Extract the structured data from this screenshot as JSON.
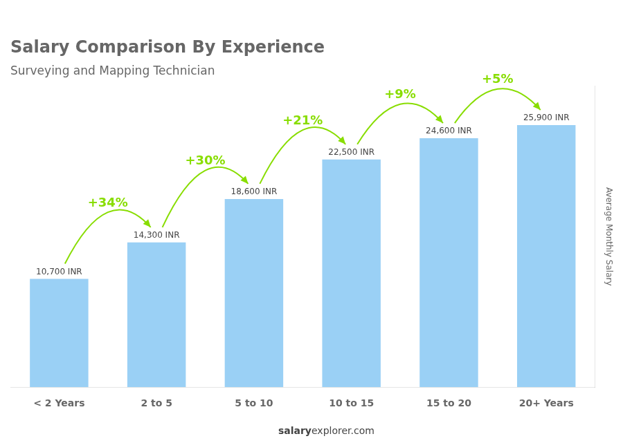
{
  "chart_data": {
    "type": "bar",
    "title": "Salary Comparison By Experience",
    "subtitle": "Surveying and Mapping Technician",
    "y_label": "Average Monthly Salary",
    "categories": [
      "< 2 Years",
      "2 to 5",
      "5 to 10",
      "10 to 15",
      "15 to 20",
      "20+ Years"
    ],
    "values": [
      10700,
      14300,
      18600,
      22500,
      24600,
      25900
    ],
    "value_labels": [
      "10,700 INR",
      "14,300 INR",
      "18,600 INR",
      "22,500 INR",
      "24,600 INR",
      "25,900 INR"
    ],
    "data_labels": true,
    "annotations": [
      {
        "text": "+34%",
        "color": "#88dd00"
      },
      {
        "text": "+30%",
        "color": "#88dd00"
      },
      {
        "text": "+21%",
        "color": "#88dd00"
      },
      {
        "text": "+9%",
        "color": "#88dd00"
      },
      {
        "text": "+5%",
        "color": "#88dd00"
      }
    ],
    "footer": [
      "salary",
      "explorer.com"
    ],
    "ylim": [
      0,
      29785
    ],
    "tick_labels": "x",
    "grid": false
  }
}
